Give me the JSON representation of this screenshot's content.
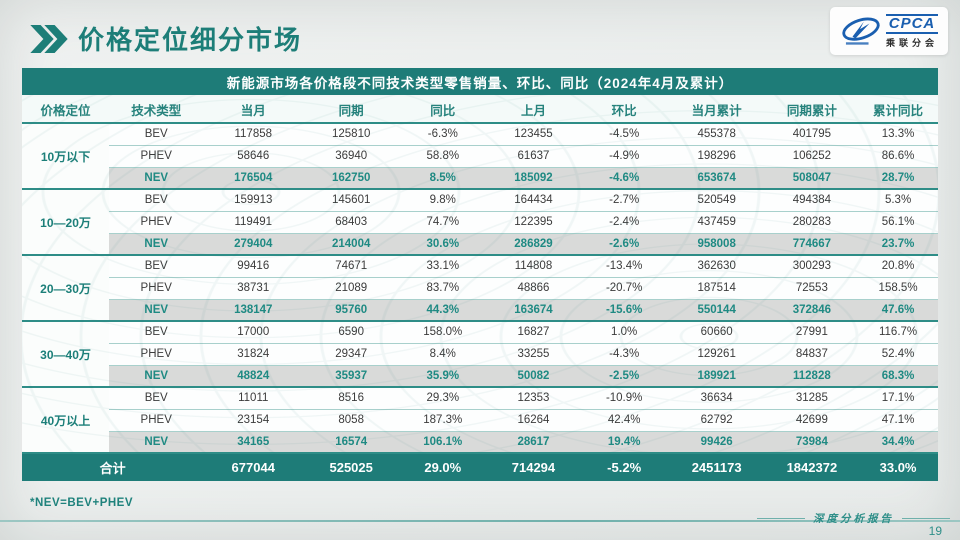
{
  "page": {
    "title": "价格定位细分市场",
    "page_number": "19",
    "footer_note": "*NEV=BEV+PHEV",
    "report_label": "深度分析报告"
  },
  "logo": {
    "brand": "CPCA",
    "subtitle": "乘联分会"
  },
  "colors": {
    "accent_teal": "#1e7c78",
    "teal_text": "#1f837d",
    "nev_row_bg": "#d9dad9",
    "logo_blue": "#1a5fb0"
  },
  "table": {
    "title": "新能源市场各价格段不同技术类型零售销量、环比、同比（2024年4月及累计）",
    "columns": [
      "价格定位",
      "技术类型",
      "当月",
      "同期",
      "同比",
      "上月",
      "环比",
      "当月累计",
      "同期累计",
      "累计同比"
    ],
    "groups": [
      {
        "label": "10万以下",
        "rows": [
          {
            "type": "BEV",
            "cells": [
              "117858",
              "125810",
              "-6.3%",
              "123455",
              "-4.5%",
              "455378",
              "401795",
              "13.3%"
            ]
          },
          {
            "type": "PHEV",
            "cells": [
              "58646",
              "36940",
              "58.8%",
              "61637",
              "-4.9%",
              "198296",
              "106252",
              "86.6%"
            ]
          },
          {
            "type": "NEV",
            "cells": [
              "176504",
              "162750",
              "8.5%",
              "185092",
              "-4.6%",
              "653674",
              "508047",
              "28.7%"
            ]
          }
        ]
      },
      {
        "label": "10—20万",
        "rows": [
          {
            "type": "BEV",
            "cells": [
              "159913",
              "145601",
              "9.8%",
              "164434",
              "-2.7%",
              "520549",
              "494384",
              "5.3%"
            ]
          },
          {
            "type": "PHEV",
            "cells": [
              "119491",
              "68403",
              "74.7%",
              "122395",
              "-2.4%",
              "437459",
              "280283",
              "56.1%"
            ]
          },
          {
            "type": "NEV",
            "cells": [
              "279404",
              "214004",
              "30.6%",
              "286829",
              "-2.6%",
              "958008",
              "774667",
              "23.7%"
            ]
          }
        ]
      },
      {
        "label": "20—30万",
        "rows": [
          {
            "type": "BEV",
            "cells": [
              "99416",
              "74671",
              "33.1%",
              "114808",
              "-13.4%",
              "362630",
              "300293",
              "20.8%"
            ]
          },
          {
            "type": "PHEV",
            "cells": [
              "38731",
              "21089",
              "83.7%",
              "48866",
              "-20.7%",
              "187514",
              "72553",
              "158.5%"
            ]
          },
          {
            "type": "NEV",
            "cells": [
              "138147",
              "95760",
              "44.3%",
              "163674",
              "-15.6%",
              "550144",
              "372846",
              "47.6%"
            ]
          }
        ]
      },
      {
        "label": "30—40万",
        "rows": [
          {
            "type": "BEV",
            "cells": [
              "17000",
              "6590",
              "158.0%",
              "16827",
              "1.0%",
              "60660",
              "27991",
              "116.7%"
            ]
          },
          {
            "type": "PHEV",
            "cells": [
              "31824",
              "29347",
              "8.4%",
              "33255",
              "-4.3%",
              "129261",
              "84837",
              "52.4%"
            ]
          },
          {
            "type": "NEV",
            "cells": [
              "48824",
              "35937",
              "35.9%",
              "50082",
              "-2.5%",
              "189921",
              "112828",
              "68.3%"
            ]
          }
        ]
      },
      {
        "label": "40万以上",
        "rows": [
          {
            "type": "BEV",
            "cells": [
              "11011",
              "8516",
              "29.3%",
              "12353",
              "-10.9%",
              "36634",
              "31285",
              "17.1%"
            ]
          },
          {
            "type": "PHEV",
            "cells": [
              "23154",
              "8058",
              "187.3%",
              "16264",
              "42.4%",
              "62792",
              "42699",
              "47.1%"
            ]
          },
          {
            "type": "NEV",
            "cells": [
              "34165",
              "16574",
              "106.1%",
              "28617",
              "19.4%",
              "99426",
              "73984",
              "34.4%"
            ]
          }
        ]
      }
    ],
    "total": {
      "label": "合计",
      "cells": [
        "677044",
        "525025",
        "29.0%",
        "714294",
        "-5.2%",
        "2451173",
        "1842372",
        "33.0%"
      ]
    }
  }
}
